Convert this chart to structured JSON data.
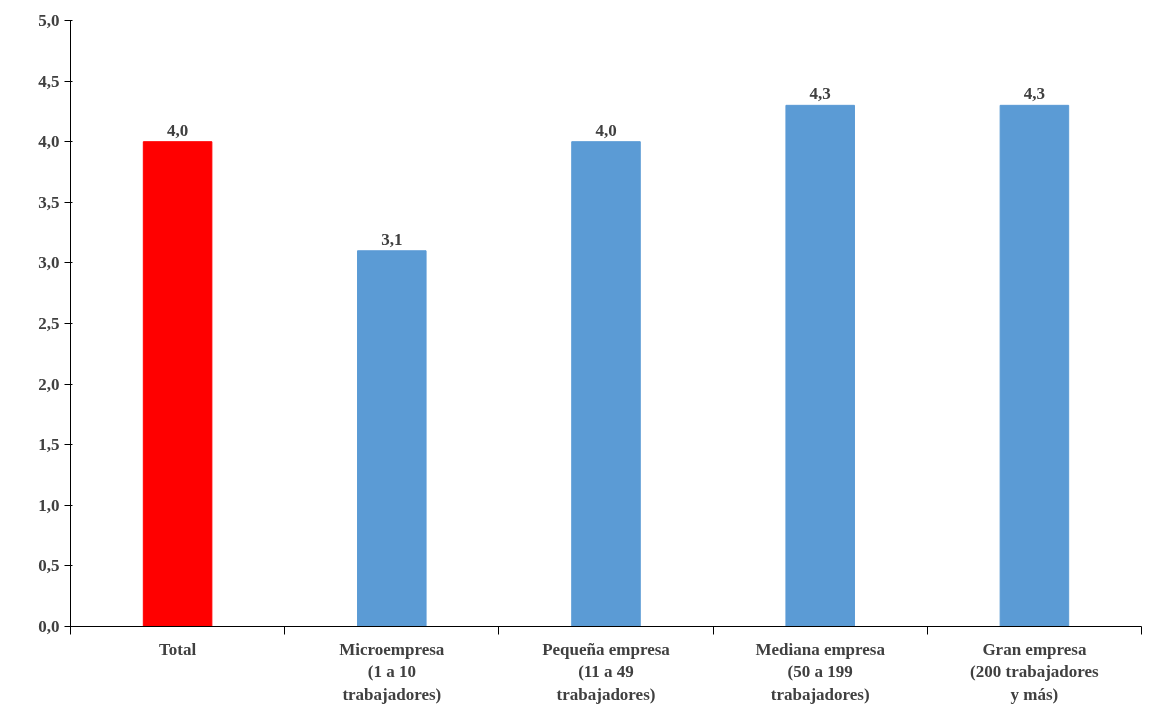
{
  "chart_data": {
    "type": "bar",
    "categories": [
      "Total",
      "Microempresa\n(1 a 10\ntrabajadores)",
      "Pequeña empresa\n(11 a 49\ntrabajadores)",
      "Mediana empresa\n(50 a 199\ntrabajadores)",
      "Gran empresa\n(200 trabajadores\ny más)"
    ],
    "values": [
      4.0,
      3.1,
      4.0,
      4.3,
      4.3
    ],
    "colors": [
      "#ff0000",
      "#5b9bd5",
      "#5b9bd5",
      "#5b9bd5",
      "#5b9bd5"
    ],
    "value_labels": [
      "4,0",
      "3,1",
      "4,0",
      "4,3",
      "4,3"
    ],
    "ylim": [
      0,
      5
    ],
    "yticks": [
      {
        "value": 0,
        "label": "0,0"
      },
      {
        "value": 0.5,
        "label": "0,5"
      },
      {
        "value": 1,
        "label": "1,0"
      },
      {
        "value": 1.5,
        "label": "1,5"
      },
      {
        "value": 2,
        "label": "2,0"
      },
      {
        "value": 2.5,
        "label": "2,5"
      },
      {
        "value": 3,
        "label": "3,0"
      },
      {
        "value": 3.5,
        "label": "3,5"
      },
      {
        "value": 4,
        "label": "4,0"
      },
      {
        "value": 4.5,
        "label": "4,5"
      },
      {
        "value": 5,
        "label": "5,0"
      }
    ],
    "grid": false
  }
}
